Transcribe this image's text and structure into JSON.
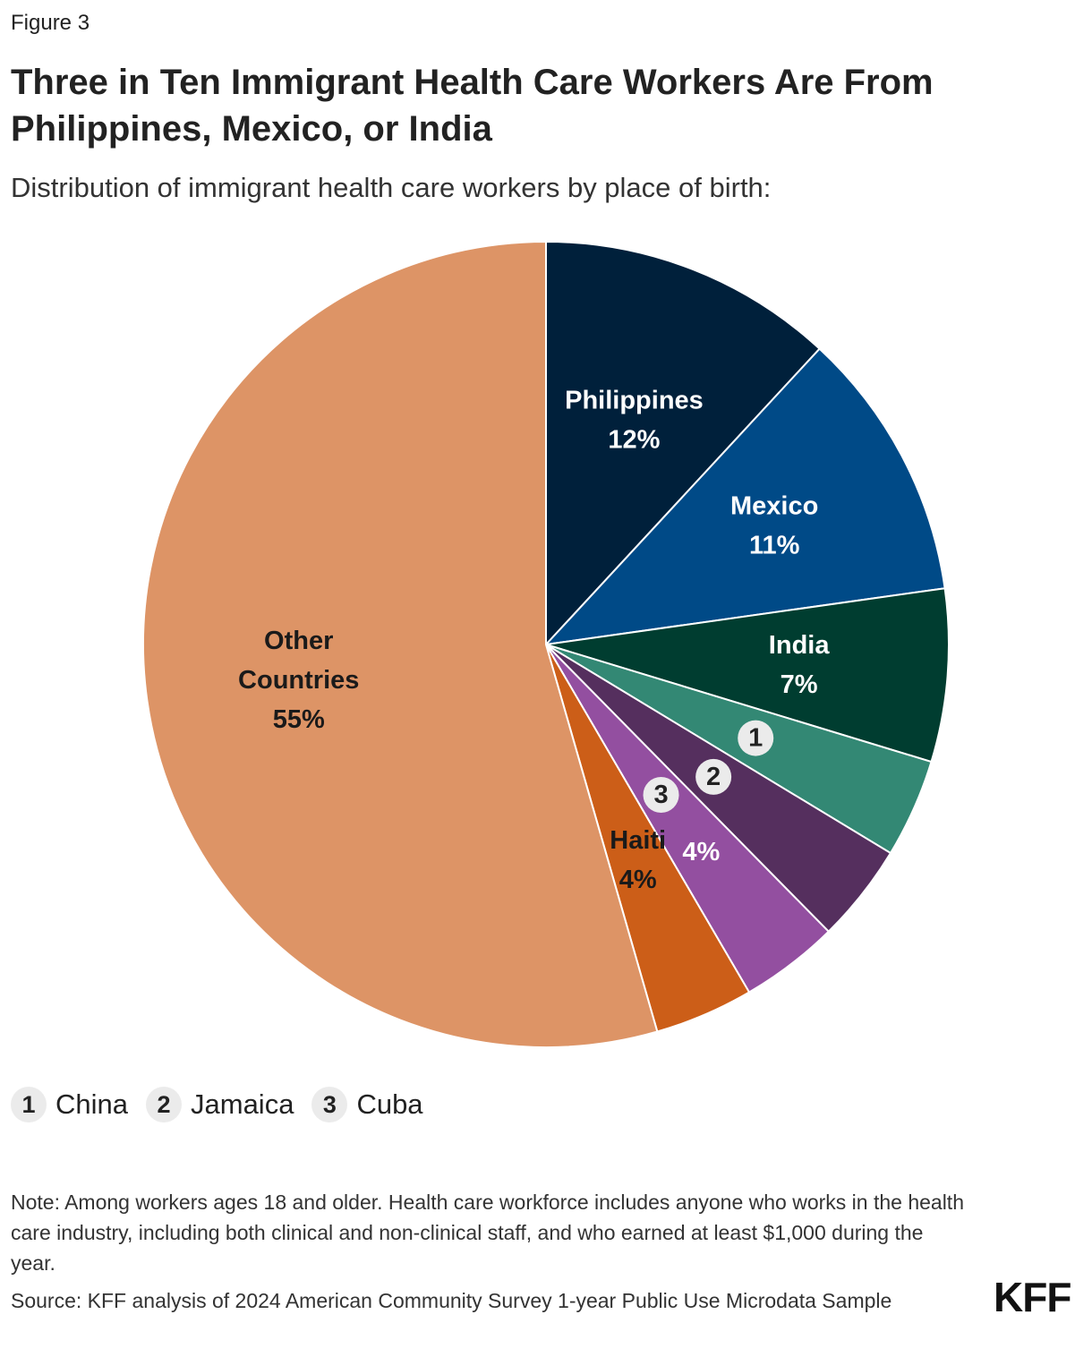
{
  "figure_label": "Figure 3",
  "title_lines": [
    "Three in Ten Immigrant Health Care Workers Are From",
    "Philippines, Mexico, or India"
  ],
  "subtitle": "Distribution of immigrant health care workers by place of birth:",
  "chart_data": {
    "type": "pie",
    "title": "Three in Ten Immigrant Health Care Workers Are From Philippines, Mexico, or India",
    "subtitle": "Distribution of immigrant health care workers by place of birth:",
    "slices": [
      {
        "name": "Philippines",
        "value": 12,
        "label": "12%",
        "color": "#00203b"
      },
      {
        "name": "Mexico",
        "value": 11,
        "label": "11%",
        "color": "#004a87"
      },
      {
        "name": "India",
        "value": 7,
        "label": "7%",
        "color": "#003d30"
      },
      {
        "name": "China",
        "value": 4,
        "badge": "1",
        "color": "#338874"
      },
      {
        "name": "Jamaica",
        "value": 4,
        "badge": "2",
        "color": "#552f5e"
      },
      {
        "name": "Cuba",
        "value": 4,
        "badge": "3",
        "label": "4%",
        "color": "#934fa0"
      },
      {
        "name": "Haiti",
        "value": 4,
        "label": "4%",
        "color": "#cc5e18"
      },
      {
        "name": "Other Countries",
        "value": 55,
        "label": "55%",
        "color": "#dd9466"
      }
    ]
  },
  "legend": [
    {
      "badge": "1",
      "label": "China"
    },
    {
      "badge": "2",
      "label": "Jamaica"
    },
    {
      "badge": "3",
      "label": "Cuba"
    }
  ],
  "note": "Note: Among workers ages 18 and older. Health care workforce includes anyone who works in the health care industry, including both clinical and non-clinical staff, and who earned at least $1,000 during the year.",
  "source": "Source: KFF analysis of 2024 American Community Survey 1-year Public Use Microdata Sample",
  "logo": "KFF"
}
